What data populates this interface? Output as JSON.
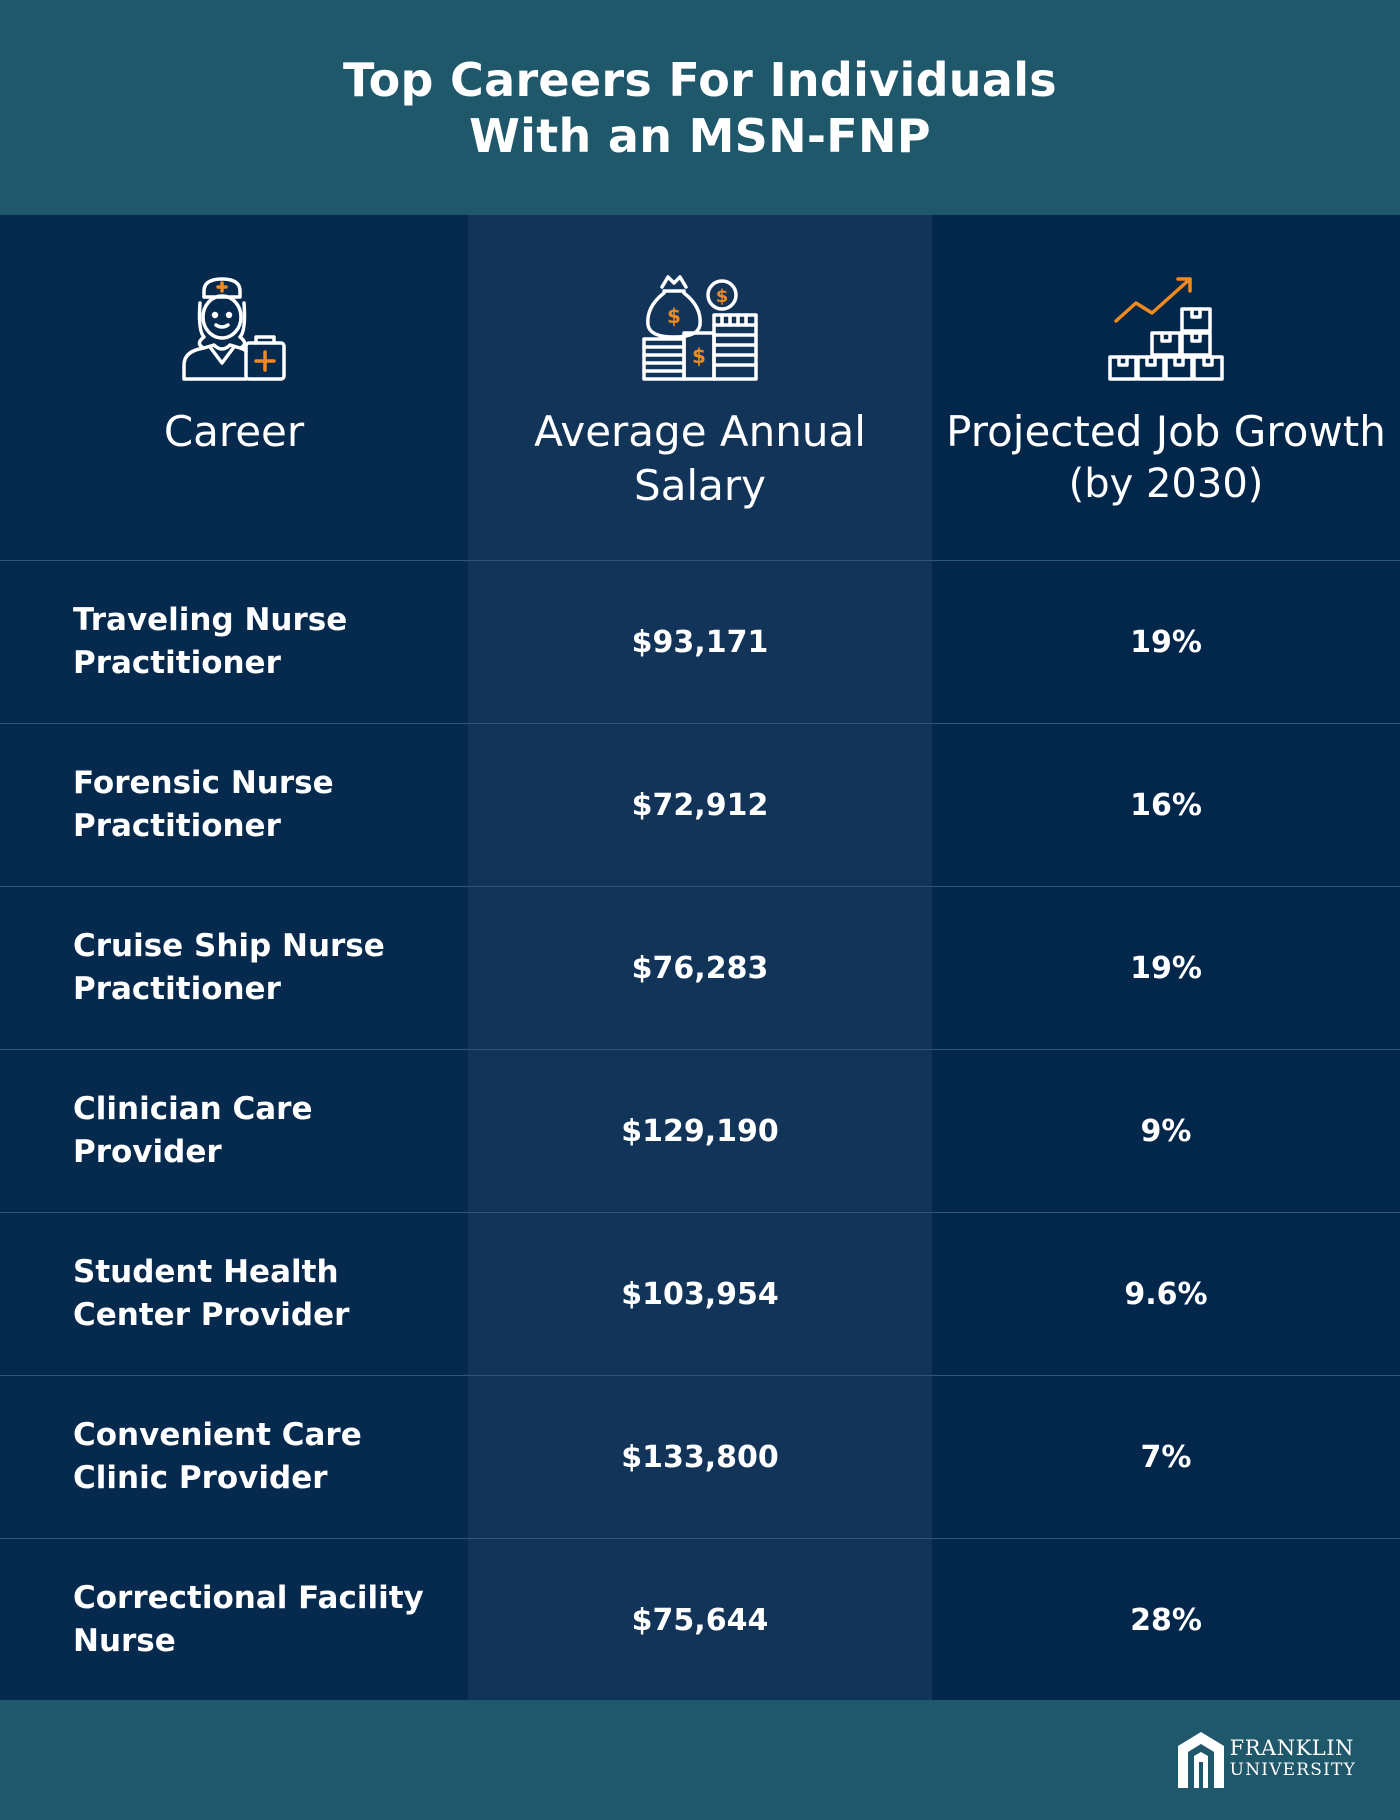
{
  "header": {
    "title_line1": "Top Careers For Individuals",
    "title_line2": "With an MSN-FNP"
  },
  "columns": {
    "career": {
      "label": "Career",
      "icon": "nurse-icon"
    },
    "salary": {
      "label": "Average Annual",
      "label_line2": "Salary",
      "icon": "money-bag-icon"
    },
    "growth": {
      "label": "Projected Job Growth",
      "sublabel": "(by 2030)",
      "icon": "growth-chart-icon"
    }
  },
  "rows": [
    {
      "career_line1": "Traveling Nurse",
      "career_line2": "Practitioner",
      "salary": "$93,171",
      "growth": "19%"
    },
    {
      "career_line1": "Forensic Nurse",
      "career_line2": "Practitioner",
      "salary": "$72,912",
      "growth": "16%"
    },
    {
      "career_line1": "Cruise Ship Nurse",
      "career_line2": "Practitioner",
      "salary": "$76,283",
      "growth": "19%"
    },
    {
      "career_line1": "Clinician Care",
      "career_line2": "Provider",
      "salary": "$129,190",
      "growth": "9%"
    },
    {
      "career_line1": "Student Health",
      "career_line2": "Center Provider",
      "salary": "$103,954",
      "growth": "9.6%"
    },
    {
      "career_line1": "Convenient Care",
      "career_line2": "Clinic Provider",
      "salary": "$133,800",
      "growth": "7%"
    },
    {
      "career_line1": "Correctional Facility",
      "career_line2": "Nurse",
      "salary": "$75,644",
      "growth": "28%"
    }
  ],
  "footer": {
    "logo_line1": "FRANKLIN",
    "logo_line2": "UNIVERSITY"
  },
  "colors": {
    "header_bg": "#1f576b",
    "col1_bg": "#06294e",
    "col2_bg": "#123459",
    "col3_bg": "#03264b",
    "accent": "#f08a1c"
  }
}
